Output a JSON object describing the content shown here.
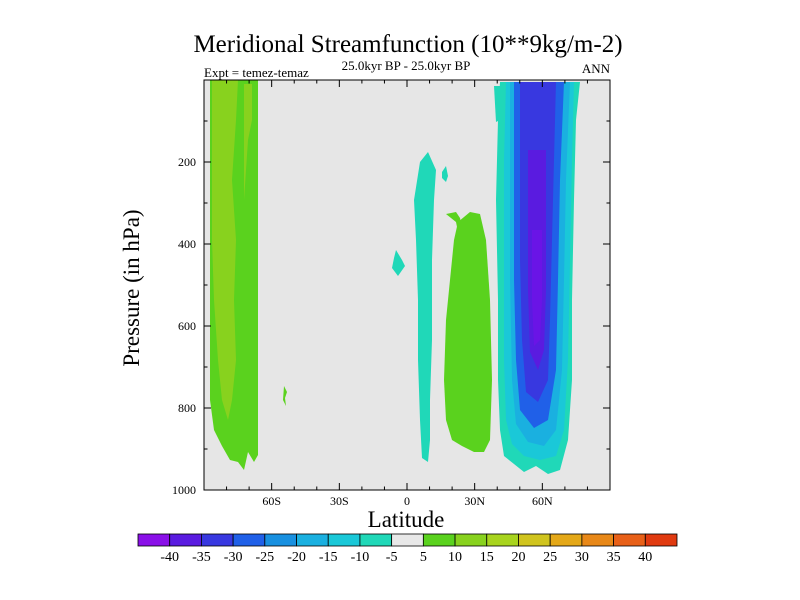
{
  "chart_data": {
    "type": "contour",
    "title": "Meridional Streamfunction (10**9kg/m-2)",
    "subtitle": "25.0kyr BP - 25.0kyr BP",
    "experiment_label": "Expt = temez-temaz",
    "period_label": "ANN",
    "xlabel": "Latitude",
    "ylabel": "Pressure (in hPa)",
    "xlim": [
      -90,
      90
    ],
    "ylim": [
      1000,
      0
    ],
    "x_ticks": [
      {
        "value": -60,
        "label": "60S"
      },
      {
        "value": -30,
        "label": "30S"
      },
      {
        "value": 0,
        "label": "0"
      },
      {
        "value": 30,
        "label": "30N"
      },
      {
        "value": 60,
        "label": "60N"
      }
    ],
    "y_ticks": [
      {
        "value": 200,
        "label": "200"
      },
      {
        "value": 400,
        "label": "400"
      },
      {
        "value": 600,
        "label": "600"
      },
      {
        "value": 800,
        "label": "800"
      },
      {
        "value": 1000,
        "label": "1000"
      }
    ],
    "colorbar": {
      "labels": [
        "-40",
        "-35",
        "-30",
        "-25",
        "-20",
        "-15",
        "-10",
        "-5",
        "5",
        "10",
        "15",
        "20",
        "25",
        "30",
        "35",
        "40"
      ],
      "colors": [
        "#8a10e8",
        "#5a1be0",
        "#3838e0",
        "#2060e8",
        "#1890e0",
        "#1ab0e0",
        "#1ac8d8",
        "#20d8b8",
        "#e8e8e8",
        "#5ad21e",
        "#88d21e",
        "#a8d41e",
        "#d0c41e",
        "#e4a818",
        "#e88818",
        "#e86018",
        "#e03a10"
      ]
    },
    "features": [
      {
        "name": "green-60s-band",
        "value_range": "5 to 10",
        "lat_range": [
          -85,
          -67
        ],
        "pressure_range": [
          0,
          950
        ]
      },
      {
        "name": "green-60s-inner",
        "value_range": "10 to 15",
        "lat_range": [
          -83,
          -73
        ],
        "pressure_range": [
          0,
          870
        ]
      },
      {
        "name": "cyan-eq-column",
        "value_range": "-10 to -5",
        "lat_range": [
          4,
          10
        ],
        "pressure_range": [
          170,
          930
        ]
      },
      {
        "name": "green-30n-column",
        "value_range": "5 to 10",
        "lat_range": [
          18,
          33
        ],
        "pressure_range": [
          330,
          940
        ]
      },
      {
        "name": "cyan-55n-column",
        "value_range": "-10 to -5",
        "lat_range": [
          45,
          70
        ],
        "pressure_range": [
          0,
          960
        ]
      },
      {
        "name": "blue-core-55n",
        "value_range": "-40 to -35",
        "lat_range": [
          53,
          60
        ],
        "pressure_range": [
          300,
          720
        ]
      },
      {
        "name": "small-cyan-blob",
        "value_range": "-10 to -5",
        "lat_range": [
          -5,
          -1
        ],
        "pressure_range": [
          420,
          470
        ]
      }
    ]
  }
}
